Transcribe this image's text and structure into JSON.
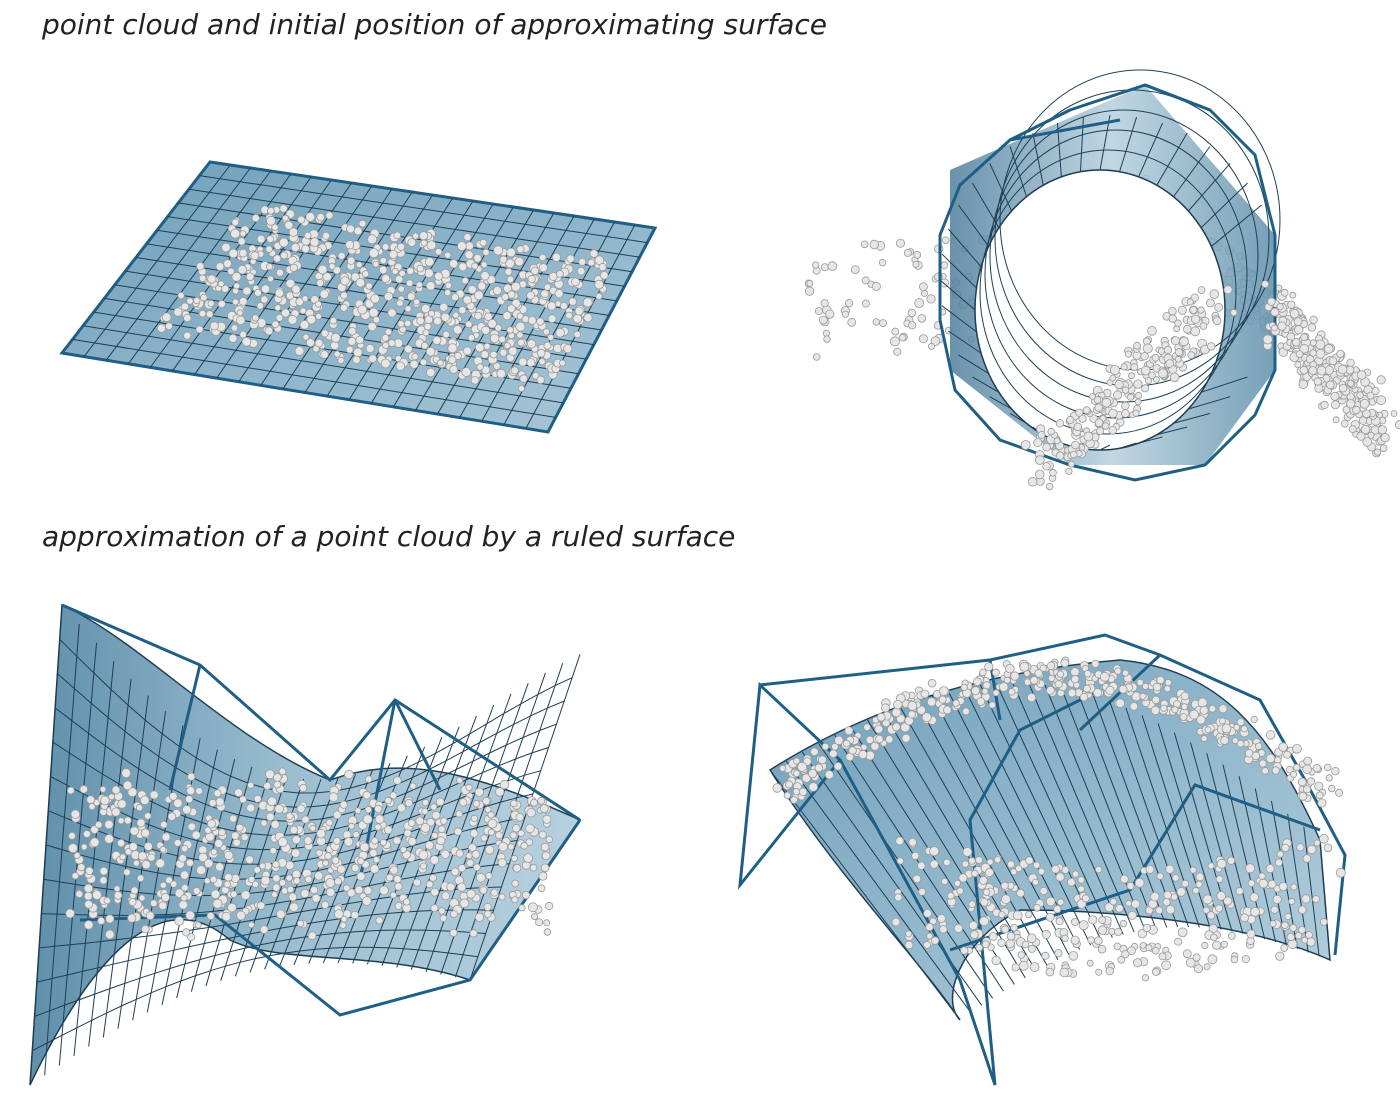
{
  "captions": {
    "top": "point cloud and initial position of approximating surface",
    "bottom": "approximation of a point cloud by a ruled surface"
  },
  "colors": {
    "surface": "#7fa9c2",
    "surface_light": "#b6d0de",
    "grid": "#1f3f55",
    "control_polygon": "#1f5f86",
    "points": "#e6e6e6",
    "points_shade": "#9a9a9a"
  }
}
